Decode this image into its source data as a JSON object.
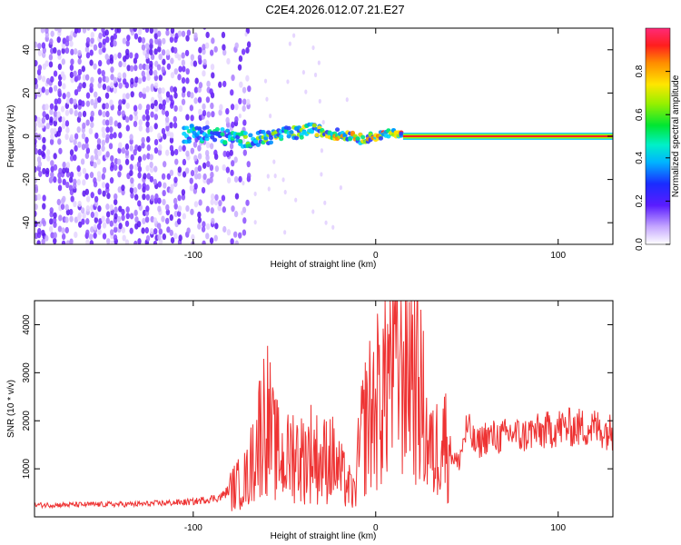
{
  "title": "C2E4.2026.012.07.21.E27",
  "colors": {
    "signal": "#ee3333",
    "axis": "#000000"
  },
  "chart_data": [
    {
      "type": "heatmap",
      "name": "spectrogram",
      "xlabel": "Height of straight line (km)",
      "ylabel": "Frequency (Hz)",
      "xlim": [
        -187,
        130
      ],
      "ylim": [
        -50,
        50
      ],
      "x_ticks": [
        -100,
        0,
        100
      ],
      "x_tick_labels": [
        "-100",
        "0",
        "100"
      ],
      "y_ticks": [
        -40,
        -20,
        0,
        20,
        40
      ],
      "y_tick_labels": [
        "-40",
        "-20",
        "0",
        "20",
        "40"
      ],
      "colorbar": {
        "label": "Normalized spectral amplitude",
        "range": [
          0,
          1
        ],
        "ticks": [
          0,
          0.2,
          0.4,
          0.6,
          0.8
        ],
        "tick_labels": [
          "0.0",
          "0.2",
          "0.4",
          "0.6",
          "0.8"
        ]
      },
      "description_regions": {
        "noise_x_range": [
          -187,
          -70
        ],
        "signal_band_start_x": -105,
        "steady_signal_start_x": 15,
        "signal_frequency": 0
      }
    },
    {
      "type": "line",
      "name": "snr",
      "xlabel": "Height of straight line (km)",
      "ylabel": "SNR (10 * v/v)",
      "xlim": [
        -187,
        130
      ],
      "ylim": [
        0,
        4500
      ],
      "x_ticks": [
        -100,
        0,
        100
      ],
      "x_tick_labels": [
        "-100",
        "0",
        "100"
      ],
      "y_ticks": [
        1000,
        2000,
        3000,
        4000
      ],
      "y_tick_labels": [
        "1000",
        "2000",
        "3000",
        "4000"
      ],
      "series": [
        {
          "name": "SNR",
          "x": [
            -187,
            -160,
            -130,
            -100,
            -85,
            -78,
            -70,
            -65,
            -60,
            -56,
            -50,
            -45,
            -40,
            -35,
            -30,
            -25,
            -20,
            -15,
            -12,
            -8,
            -5,
            0,
            5,
            8,
            10,
            12,
            15,
            20,
            25,
            28,
            32,
            36,
            40,
            45,
            50,
            55,
            60,
            65,
            70,
            75,
            80,
            85,
            90,
            100,
            110,
            120,
            130
          ],
          "values": [
            250,
            260,
            270,
            320,
            420,
            650,
            900,
            1700,
            2400,
            1600,
            1200,
            1500,
            1300,
            1500,
            1200,
            1400,
            1000,
            700,
            500,
            1700,
            2200,
            2500,
            3000,
            3500,
            3800,
            3600,
            3600,
            3600,
            2700,
            1800,
            1300,
            2000,
            1500,
            1100,
            1900,
            1500,
            1700,
            1700,
            1700,
            1800,
            1700,
            1800,
            1800,
            1900,
            1900,
            1900,
            1800
          ]
        }
      ]
    }
  ]
}
